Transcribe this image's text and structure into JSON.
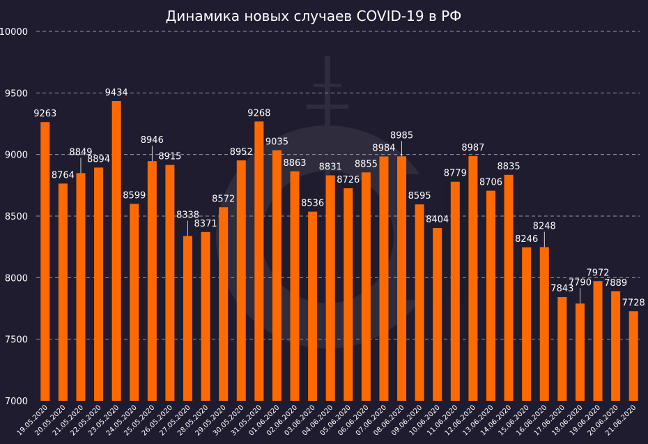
{
  "chart_data": {
    "type": "bar",
    "title": "Динамика новых случаев COVID-19 в РФ",
    "ylim": [
      7000,
      10000
    ],
    "yticks": [
      7000,
      7500,
      8000,
      8500,
      9000,
      9500,
      10000
    ],
    "grid": true,
    "bar_color": "#ff6a00",
    "background_color": "#1e1c2e",
    "categories": [
      "19.05.2020",
      "20.05.2020",
      "21.05.2020",
      "22.05.2020",
      "23.05.2020",
      "24.05.2020",
      "25.05.2020",
      "26.05.2020",
      "27.05.2020",
      "28.05.2020",
      "29.05.2020",
      "30.05.2020",
      "31.05.2020",
      "01.06.2020",
      "02.06.2020",
      "03.06.2020",
      "04.06.2020",
      "05.06.2020",
      "06.06.2020",
      "07.06.2020",
      "08.06.2020",
      "09.06.2020",
      "10.06.2020",
      "11.06.2020",
      "12.06.2020",
      "13.06.2020",
      "14.06.2020",
      "15.06.2020",
      "16.06.2020",
      "17.06.2020",
      "18.06.2020",
      "19.06.2020",
      "20.06.2020",
      "21.06.2020"
    ],
    "values": [
      9263,
      8764,
      8849,
      8894,
      9434,
      8599,
      8946,
      8915,
      8338,
      8371,
      8572,
      8952,
      9268,
      9035,
      8863,
      8536,
      8831,
      8726,
      8855,
      8984,
      8985,
      8595,
      8404,
      8779,
      8987,
      8706,
      8835,
      8246,
      8248,
      7843,
      7790,
      7972,
      7889,
      7728
    ]
  }
}
